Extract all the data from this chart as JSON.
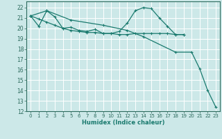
{
  "xlabel": "Humidex (Indice chaleur)",
  "background_color": "#cce8e8",
  "grid_color": "#b8d8d8",
  "line_color": "#1a7a6e",
  "xlim": [
    -0.5,
    23.5
  ],
  "ylim": [
    12,
    22.6
  ],
  "xticks": [
    0,
    1,
    2,
    3,
    4,
    5,
    6,
    7,
    8,
    9,
    10,
    11,
    12,
    13,
    14,
    15,
    16,
    17,
    18,
    19,
    20,
    21,
    22,
    23
  ],
  "yticks": [
    12,
    13,
    14,
    15,
    16,
    17,
    18,
    19,
    20,
    21,
    22
  ],
  "series": [
    {
      "x": [
        0,
        2,
        5,
        9,
        12,
        14,
        18,
        20,
        21,
        22,
        23
      ],
      "y": [
        21.2,
        21.7,
        20.8,
        20.3,
        19.8,
        19.2,
        17.7,
        17.7,
        16.1,
        14.0,
        12.4
      ]
    },
    {
      "x": [
        0,
        1,
        2,
        3,
        4,
        5,
        6,
        7,
        8,
        9,
        10,
        11,
        12,
        13,
        14,
        15,
        16,
        17,
        18,
        19
      ],
      "y": [
        21.2,
        20.2,
        21.7,
        21.1,
        20.0,
        20.1,
        19.8,
        19.7,
        19.9,
        19.5,
        19.5,
        19.7,
        20.5,
        21.7,
        22.0,
        21.9,
        21.0,
        20.2,
        19.4,
        19.4
      ]
    },
    {
      "x": [
        0,
        1,
        2,
        3,
        4,
        5,
        6,
        7,
        8,
        9,
        10,
        11,
        12,
        13,
        14,
        15,
        16,
        17,
        18,
        19
      ],
      "y": [
        21.2,
        20.9,
        20.6,
        20.3,
        20.0,
        19.8,
        19.7,
        19.6,
        19.6,
        19.5,
        19.5,
        19.4,
        19.4,
        19.5,
        19.5,
        19.5,
        19.5,
        19.5,
        19.4,
        19.4
      ]
    }
  ]
}
